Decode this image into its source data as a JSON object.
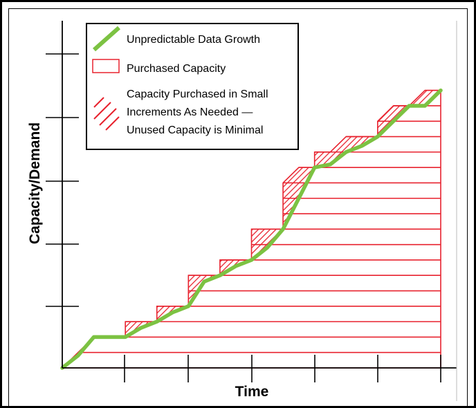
{
  "axes": {
    "y_label": "Capacity/Demand",
    "x_label": "Time"
  },
  "legend": {
    "items": [
      {
        "key": "growth",
        "label_lines": [
          "Unpredictable Data Growth"
        ]
      },
      {
        "key": "purchased",
        "label_lines": [
          "Purchased Capacity"
        ]
      },
      {
        "key": "increments",
        "label_lines": [
          "Capacity Purchased in Small",
          "Increments As Needed —",
          "Unused Capacity is Minimal"
        ]
      }
    ]
  },
  "colors": {
    "growth": "#7cc242",
    "capacity": "#e8222e",
    "axis": "#000000"
  },
  "diagram_data": {
    "time_range": [
      0,
      12
    ],
    "capacity_range": [
      0,
      18.3
    ],
    "capacity_steps": [
      {
        "t": 0.0,
        "c": 0
      },
      {
        "t": 0.5,
        "c": 1
      },
      {
        "t": 1.0,
        "c": 2
      },
      {
        "t": 2.0,
        "c": 2
      },
      {
        "t": 2.0,
        "c": 3
      },
      {
        "t": 3.0,
        "c": 3
      },
      {
        "t": 3.0,
        "c": 4
      },
      {
        "t": 4.0,
        "c": 4
      },
      {
        "t": 4.0,
        "c": 6
      },
      {
        "t": 5.0,
        "c": 6
      },
      {
        "t": 5.0,
        "c": 7
      },
      {
        "t": 6.0,
        "c": 7
      },
      {
        "t": 6.0,
        "c": 9
      },
      {
        "t": 7.0,
        "c": 9
      },
      {
        "t": 7.0,
        "c": 12
      },
      {
        "t": 7.5,
        "c": 13
      },
      {
        "t": 8.0,
        "c": 13
      },
      {
        "t": 8.0,
        "c": 14
      },
      {
        "t": 8.5,
        "c": 14
      },
      {
        "t": 9.0,
        "c": 15
      },
      {
        "t": 10.0,
        "c": 15
      },
      {
        "t": 10.0,
        "c": 16
      },
      {
        "t": 10.5,
        "c": 17
      },
      {
        "t": 11.0,
        "c": 17
      },
      {
        "t": 11.5,
        "c": 18
      },
      {
        "t": 12.0,
        "c": 18
      }
    ],
    "demand_curve": [
      {
        "t": 0.0,
        "c": 0.0
      },
      {
        "t": 0.5,
        "c": 0.8
      },
      {
        "t": 1.0,
        "c": 2.0
      },
      {
        "t": 2.0,
        "c": 2.0
      },
      {
        "t": 2.5,
        "c": 2.6
      },
      {
        "t": 3.0,
        "c": 3.0
      },
      {
        "t": 3.5,
        "c": 3.6
      },
      {
        "t": 4.0,
        "c": 4.0
      },
      {
        "t": 4.5,
        "c": 5.6
      },
      {
        "t": 5.0,
        "c": 6.0
      },
      {
        "t": 5.5,
        "c": 6.6
      },
      {
        "t": 6.0,
        "c": 7.0
      },
      {
        "t": 6.5,
        "c": 7.8
      },
      {
        "t": 7.0,
        "c": 9.0
      },
      {
        "t": 7.5,
        "c": 11.0
      },
      {
        "t": 8.0,
        "c": 13.0
      },
      {
        "t": 8.5,
        "c": 13.2
      },
      {
        "t": 9.0,
        "c": 14.0
      },
      {
        "t": 9.5,
        "c": 14.4
      },
      {
        "t": 10.0,
        "c": 15.0
      },
      {
        "t": 10.5,
        "c": 16.0
      },
      {
        "t": 11.0,
        "c": 17.0
      },
      {
        "t": 11.5,
        "c": 17.0
      },
      {
        "t": 12.0,
        "c": 18.0
      }
    ]
  }
}
